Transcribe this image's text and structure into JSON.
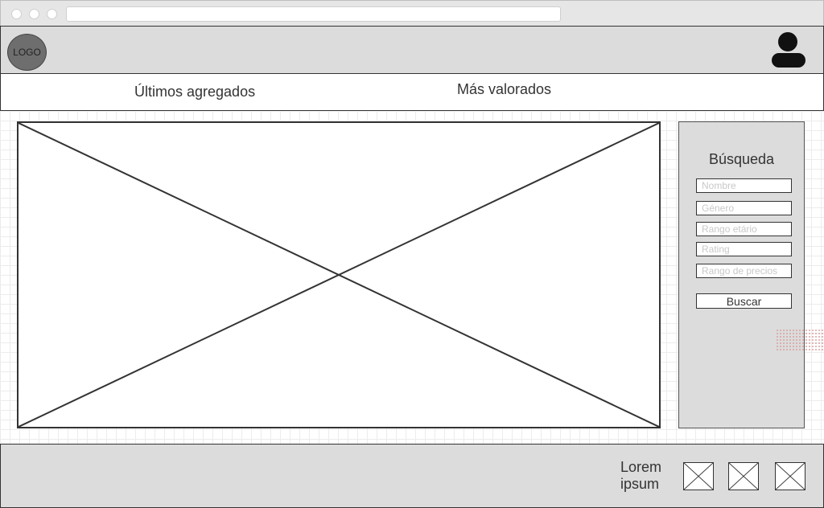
{
  "header": {
    "logo_text": "LOGO",
    "user_icon": "user-icon"
  },
  "nav": {
    "items": [
      {
        "label": "Últimos agregados"
      },
      {
        "label": "Más valorados"
      }
    ]
  },
  "main": {
    "hero_image": "image-placeholder"
  },
  "sidebar": {
    "title": "Búsqueda",
    "fields": [
      {
        "placeholder": "Nombre",
        "value": ""
      },
      {
        "placeholder": "Género",
        "value": ""
      },
      {
        "placeholder": "Rango etário",
        "value": ""
      },
      {
        "placeholder": "Rating",
        "value": ""
      },
      {
        "placeholder": "Rango de precios",
        "value": ""
      }
    ],
    "search_label": "Buscar"
  },
  "footer": {
    "text_line1": "Lorem",
    "text_line2": "ipsum",
    "images": [
      "image-placeholder",
      "image-placeholder",
      "image-placeholder"
    ]
  },
  "colors": {
    "panel_gray": "#dcdcdc",
    "border": "#333333",
    "logo_fill": "#6e6e6e"
  }
}
